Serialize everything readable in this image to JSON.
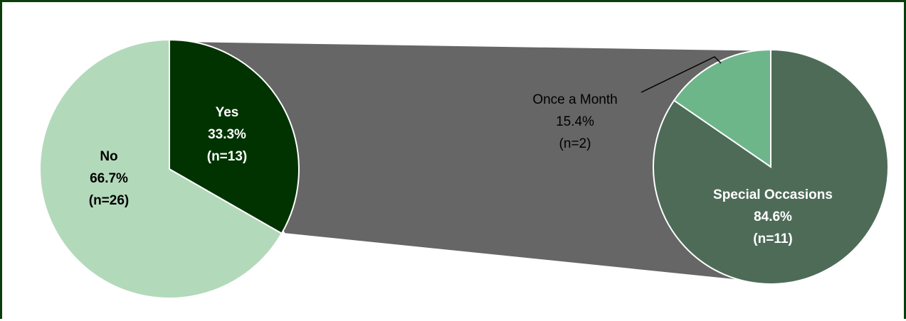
{
  "chart_data": [
    {
      "type": "pie",
      "slices": [
        {
          "label": "Yes",
          "percent_text": "33.3%",
          "n_text": "(n=13)",
          "value": 33.3,
          "count": 13,
          "color": "#003300"
        },
        {
          "label": "No",
          "percent_text": "66.7%",
          "n_text": "(n=26)",
          "value": 66.7,
          "count": 26,
          "color": "#b3d9bb"
        }
      ]
    },
    {
      "type": "pie",
      "breakdown_of": "Yes",
      "slices": [
        {
          "label": "Once a Month",
          "percent_text": "15.4%",
          "n_text": "(n=2)",
          "value": 15.4,
          "count": 2,
          "color": "#6db68a"
        },
        {
          "label": "Special Occasions",
          "percent_text": "84.6%",
          "n_text": "(n=11)",
          "value": 84.6,
          "count": 11,
          "color": "#4e6b58"
        }
      ]
    }
  ],
  "connector_color": "#666666",
  "frame_color": "#0a3d0a"
}
